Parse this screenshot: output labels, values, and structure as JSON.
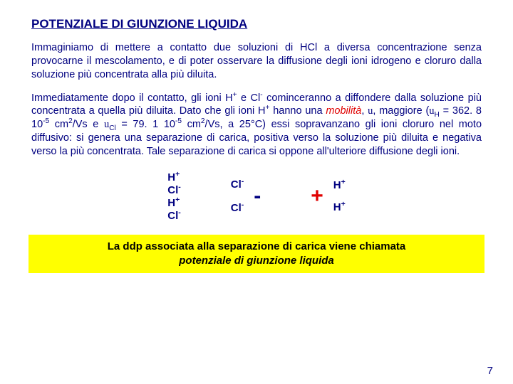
{
  "title": "POTENZIALE DI GIUNZIONE LIQUIDA",
  "para1": "Immaginiamo di mettere a contatto due soluzioni di HCl a diversa concentrazione senza provocarne il mescolamento, e di poter osservare la diffusione degli ioni idrogeno e cloruro dalla soluzione più concentrata alla più diluita.",
  "para2a": "Immediatamente dopo il contatto, gli ioni H",
  "para2b": " e Cl",
  "para2c": " cominceranno a diffondere dalla soluzione più concentrata a quella più diluita. Dato che gli ioni H",
  "para2d": " hanno una ",
  "mobilita": "mobilità",
  "para2e": ", ",
  "sym_u": "u",
  "para2f": ", maggiore (",
  "uH_pre": " = 362. 8 10",
  "uH_exp": "-5",
  "uH_unit": " cm",
  "vs_unit": "/Vs e ",
  "uCl_pre": " = 79. 1 10",
  "vs_unit2": "/Vs, a 25°C) essi sopravanzano gli ioni cloruro nel moto diffusivo: si genera una separazione di carica, positiva verso la soluzione più diluita e negativa verso la più concentrata. Tale separazione di carica si oppone all'ulteriore diffusione degli ioni.",
  "ions": {
    "left": [
      "H+",
      "Cl-",
      "H+",
      "Cl-"
    ],
    "midCl": [
      "Cl-",
      "Cl-"
    ],
    "midH": [
      "H+",
      "H+"
    ]
  },
  "signs": {
    "minus": "-",
    "plus": "+"
  },
  "hl_line1": "La ddp associata alla separazione di carica viene chiamata",
  "hl_line2": "potenziale di giunzione liquida",
  "pagenum": "7",
  "sub_H": "H",
  "sub_Cl": "Cl",
  "two": "2"
}
